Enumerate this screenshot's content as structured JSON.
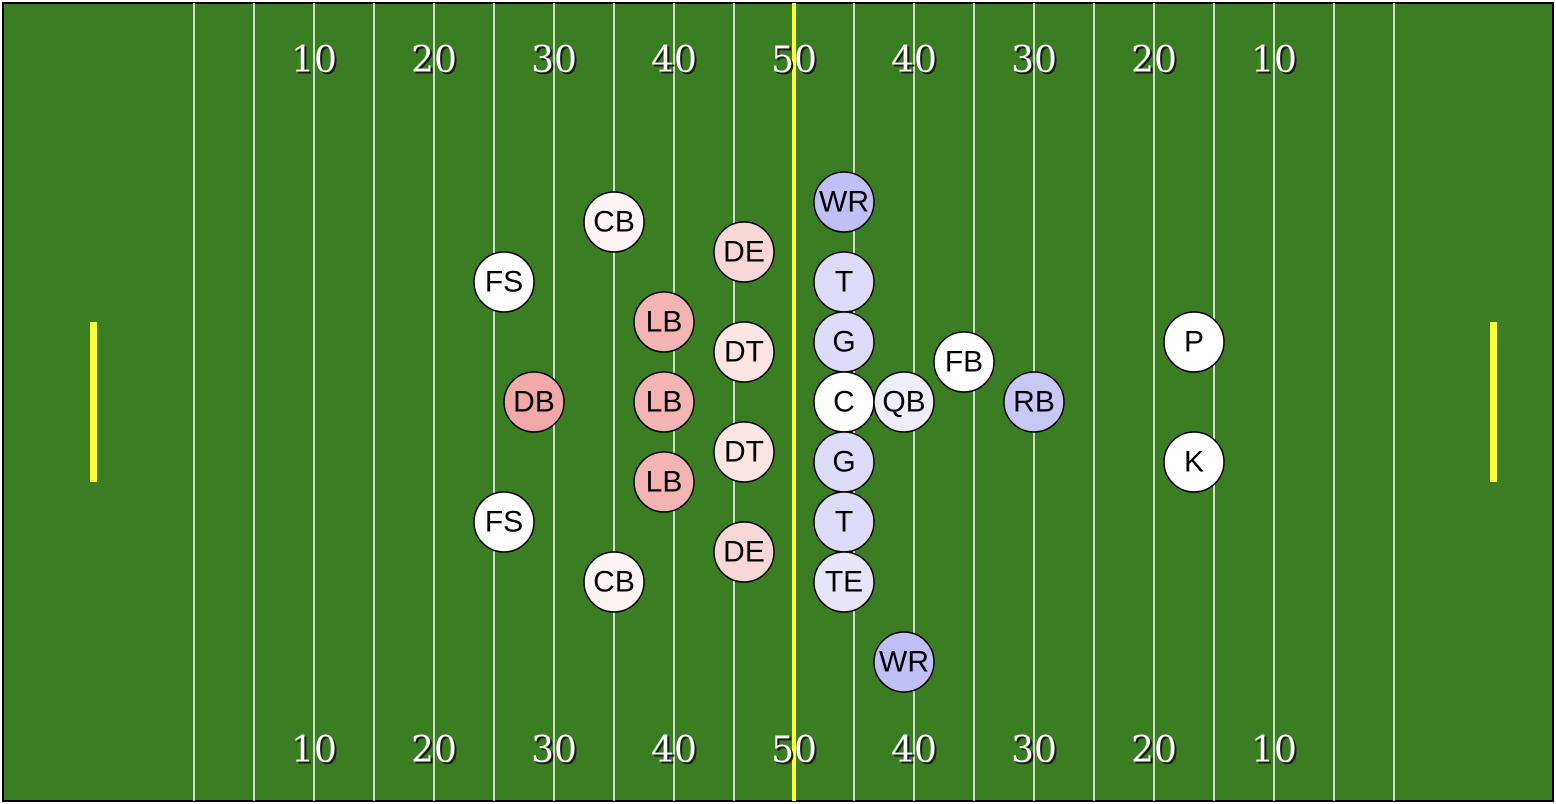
{
  "colors": {
    "field": "#3a7d22",
    "yard_line": "#ffffff",
    "midfield_line": "#ffff33",
    "goalpost": "#ffff33",
    "border": "#000000"
  },
  "yard_numbers": [
    "10",
    "20",
    "30",
    "40",
    "50",
    "40",
    "30",
    "20",
    "10"
  ],
  "players": [
    {
      "label": "WR",
      "fill": "#c0c0f6"
    },
    {
      "label": "T",
      "fill": "#dcdcf8"
    },
    {
      "label": "G",
      "fill": "#dcdcf8"
    },
    {
      "label": "C",
      "fill": "#ffffff"
    },
    {
      "label": "G",
      "fill": "#dcdcf8"
    },
    {
      "label": "T",
      "fill": "#dcdcf8"
    },
    {
      "label": "TE",
      "fill": "#e6e6f8"
    },
    {
      "label": "WR",
      "fill": "#c0c0f6"
    },
    {
      "label": "QB",
      "fill": "#eeeefb"
    },
    {
      "label": "FB",
      "fill": "#ffffff"
    },
    {
      "label": "RB",
      "fill": "#c8c8f6"
    },
    {
      "label": "P",
      "fill": "#ffffff"
    },
    {
      "label": "K",
      "fill": "#ffffff"
    },
    {
      "label": "CB",
      "fill": "#fff4f4"
    },
    {
      "label": "CB",
      "fill": "#fff4f4"
    },
    {
      "label": "DE",
      "fill": "#f8d8d6"
    },
    {
      "label": "DE",
      "fill": "#f8d8d6"
    },
    {
      "label": "DT",
      "fill": "#fce6e4"
    },
    {
      "label": "DT",
      "fill": "#fce6e4"
    },
    {
      "label": "LB",
      "fill": "#f3b4b4"
    },
    {
      "label": "LB",
      "fill": "#f3b4b4"
    },
    {
      "label": "LB",
      "fill": "#f3b4b4"
    },
    {
      "label": "FS",
      "fill": "#ffffff"
    },
    {
      "label": "FS",
      "fill": "#ffffff"
    },
    {
      "label": "DB",
      "fill": "#f0a8a8"
    }
  ]
}
